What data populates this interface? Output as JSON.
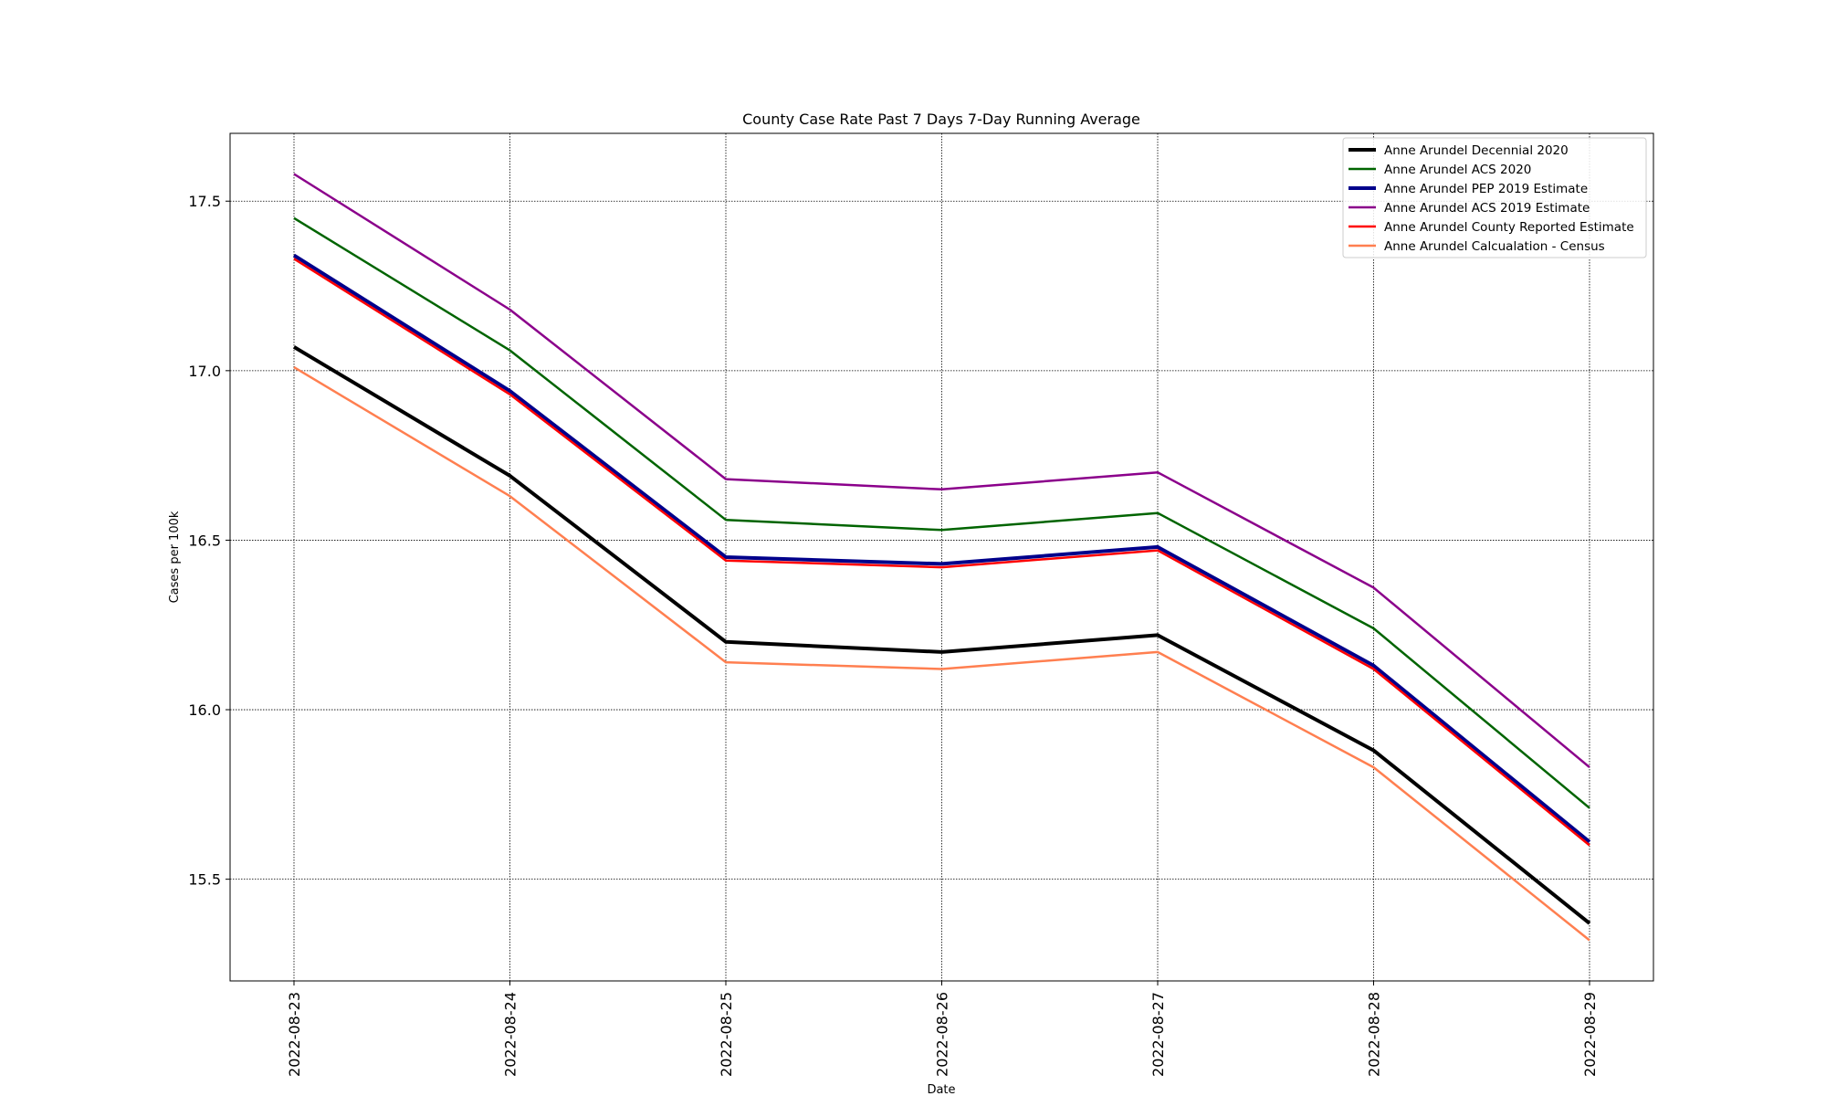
{
  "chart_data": {
    "type": "line",
    "title": "County Case Rate  Past 7 Days 7-Day Running Average",
    "xlabel": "Date",
    "ylabel": "Cases per 100k",
    "categories": [
      "2022-08-23",
      "2022-08-24",
      "2022-08-25",
      "2022-08-26",
      "2022-08-27",
      "2022-08-28",
      "2022-08-29"
    ],
    "ylim": [
      15.2,
      17.7
    ],
    "yticks": [
      "15.5",
      "16.0",
      "16.5",
      "17.0",
      "17.5"
    ],
    "grid": true,
    "legend_position": "top-right",
    "series": [
      {
        "name": "Anne Arundel Decennial 2020",
        "color": "#000000",
        "values": [
          17.07,
          16.69,
          16.2,
          16.17,
          16.22,
          15.88,
          15.37
        ]
      },
      {
        "name": "Anne Arundel ACS 2020",
        "color": "#006400",
        "values": [
          17.45,
          17.06,
          16.56,
          16.53,
          16.58,
          16.24,
          15.71
        ]
      },
      {
        "name": "Anne Arundel PEP 2019 Estimate",
        "color": "#00008b",
        "values": [
          17.34,
          16.94,
          16.45,
          16.43,
          16.48,
          16.13,
          15.61
        ]
      },
      {
        "name": "Anne Arundel ACS 2019 Estimate",
        "color": "#8b008b",
        "values": [
          17.58,
          17.18,
          16.68,
          16.65,
          16.7,
          16.36,
          15.83
        ]
      },
      {
        "name": "Anne Arundel County Reported Estimate",
        "color": "#ff0000",
        "values": [
          17.33,
          16.93,
          16.44,
          16.42,
          16.47,
          16.12,
          15.6
        ]
      },
      {
        "name": "Anne Arundel Calcualation - Census",
        "color": "#ff7f50",
        "values": [
          17.01,
          16.63,
          16.14,
          16.12,
          16.17,
          15.83,
          15.32
        ]
      }
    ]
  }
}
